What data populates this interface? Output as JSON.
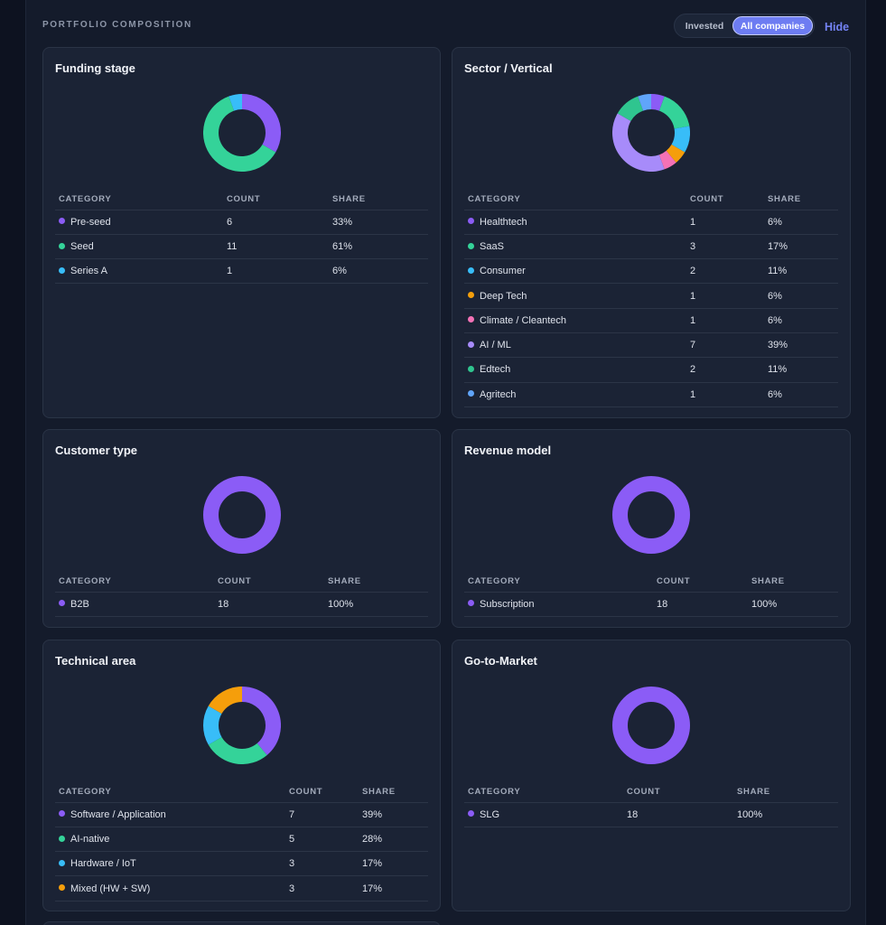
{
  "section_title": "PORTFOLIO COMPOSITION",
  "toggle": {
    "invested_label": "Invested",
    "all_label": "All companies",
    "selected": "All companies"
  },
  "hide_label": "Hide",
  "columns": {
    "category": "CATEGORY",
    "count": "COUNT",
    "share": "SHARE"
  },
  "colors": {
    "accent": "#6d7cf2",
    "card_bg": "#1b2335",
    "page_bg": "#0d1220"
  },
  "cards": [
    {
      "title": "Funding stage",
      "rows": [
        {
          "label": "Pre-seed",
          "count": "6",
          "share": "33%",
          "color": "#8b5cf6",
          "value": 6
        },
        {
          "label": "Seed",
          "count": "11",
          "share": "61%",
          "color": "#34d399",
          "value": 11
        },
        {
          "label": "Series A",
          "count": "1",
          "share": "6%",
          "color": "#38bdf8",
          "value": 1
        }
      ]
    },
    {
      "title": "Sector / Vertical",
      "rows": [
        {
          "label": "Healthtech",
          "count": "1",
          "share": "6%",
          "color": "#8b5cf6",
          "value": 1
        },
        {
          "label": "SaaS",
          "count": "3",
          "share": "17%",
          "color": "#34d399",
          "value": 3
        },
        {
          "label": "Consumer",
          "count": "2",
          "share": "11%",
          "color": "#38bdf8",
          "value": 2
        },
        {
          "label": "Deep Tech",
          "count": "1",
          "share": "6%",
          "color": "#f59e0b",
          "value": 1
        },
        {
          "label": "Climate / Cleantech",
          "count": "1",
          "share": "6%",
          "color": "#f472b6",
          "value": 1
        },
        {
          "label": "AI / ML",
          "count": "7",
          "share": "39%",
          "color": "#a78bfa",
          "value": 7
        },
        {
          "label": "Edtech",
          "count": "2",
          "share": "11%",
          "color": "#2fc58f",
          "value": 2
        },
        {
          "label": "Agritech",
          "count": "1",
          "share": "6%",
          "color": "#60a5fa",
          "value": 1
        }
      ]
    },
    {
      "title": "Customer type",
      "rows": [
        {
          "label": "B2B",
          "count": "18",
          "share": "100%",
          "color": "#8b5cf6",
          "value": 18
        }
      ]
    },
    {
      "title": "Revenue model",
      "rows": [
        {
          "label": "Subscription",
          "count": "18",
          "share": "100%",
          "color": "#8b5cf6",
          "value": 18
        }
      ]
    },
    {
      "title": "Technical area",
      "rows": [
        {
          "label": "Software / Application",
          "count": "7",
          "share": "39%",
          "color": "#8b5cf6",
          "value": 7
        },
        {
          "label": "AI-native",
          "count": "5",
          "share": "28%",
          "color": "#34d399",
          "value": 5
        },
        {
          "label": "Hardware / IoT",
          "count": "3",
          "share": "17%",
          "color": "#38bdf8",
          "value": 3
        },
        {
          "label": "Mixed (HW + SW)",
          "count": "3",
          "share": "17%",
          "color": "#f59e0b",
          "value": 3
        }
      ]
    },
    {
      "title": "Go-to-Market",
      "rows": [
        {
          "label": "SLG",
          "count": "18",
          "share": "100%",
          "color": "#8b5cf6",
          "value": 18
        }
      ]
    }
  ]
}
